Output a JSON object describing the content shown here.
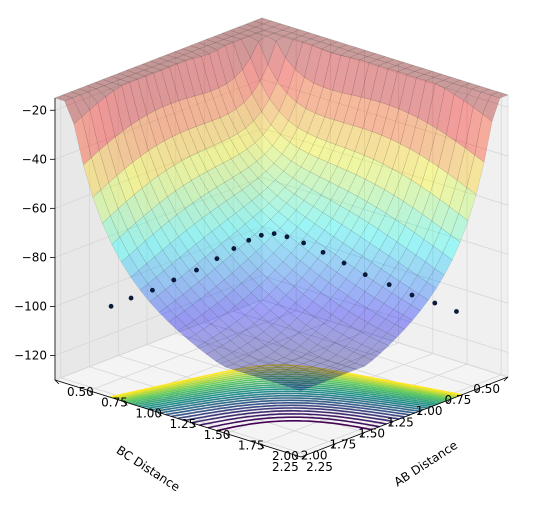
{
  "chart_data": {
    "type": "surface3d",
    "title": "",
    "x_axis": {
      "label": "AB Distance",
      "ticks": [
        "0.50",
        "0.75",
        "1.00",
        "1.25",
        "1.50",
        "1.75",
        "2.00",
        "2.25"
      ],
      "range": [
        0.5,
        2.3
      ]
    },
    "y_axis": {
      "label": "BC Distance",
      "ticks": [
        "0.50",
        "0.75",
        "1.00",
        "1.25",
        "1.50",
        "1.75",
        "2.00",
        "2.25"
      ],
      "range": [
        0.5,
        2.3
      ]
    },
    "z_axis": {
      "label": "",
      "ticks": [
        "−20",
        "−40",
        "−60",
        "−80",
        "−100",
        "−120"
      ],
      "range": [
        -130,
        -15
      ]
    },
    "surface": {
      "colormap": "jet",
      "alpha": 0.35,
      "z_min": -105,
      "z_max": -15,
      "saddle": {
        "x": 1.1,
        "y": 1.1,
        "z": -63
      },
      "valley_floor": -103
    },
    "contour": {
      "colormap": "viridis",
      "offset_z": -130,
      "levels": 24
    },
    "trajectory": {
      "color": "#0a1a3a",
      "points": [
        [
          0.7,
          2.05,
          -101
        ],
        [
          0.72,
          1.9,
          -100
        ],
        [
          0.75,
          1.75,
          -99
        ],
        [
          0.78,
          1.6,
          -97
        ],
        [
          0.82,
          1.45,
          -95
        ],
        [
          0.86,
          1.32,
          -92
        ],
        [
          0.9,
          1.22,
          -89
        ],
        [
          0.95,
          1.15,
          -86
        ],
        [
          1.0,
          1.1,
          -84
        ],
        [
          1.06,
          1.06,
          -83
        ],
        [
          1.12,
          1.02,
          -84
        ],
        [
          1.2,
          0.97,
          -86
        ],
        [
          1.3,
          0.92,
          -89
        ],
        [
          1.42,
          0.88,
          -92
        ],
        [
          1.55,
          0.85,
          -95
        ],
        [
          1.7,
          0.82,
          -97
        ],
        [
          1.85,
          0.8,
          -99
        ],
        [
          2.0,
          0.78,
          -100
        ],
        [
          2.15,
          0.77,
          -101
        ]
      ]
    }
  }
}
